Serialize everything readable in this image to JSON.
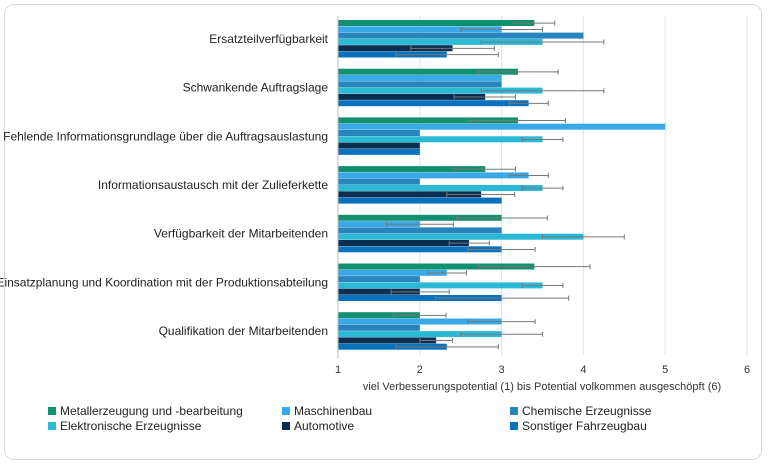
{
  "chart_data": {
    "type": "bar",
    "orientation": "horizontal",
    "categories": [
      "Ersatzteilverfügbarkeit",
      "Schwankende Auftragslage",
      "Fehlende Informationsgrundlage über die Auftragsauslastung",
      "Informationsaustausch mit der Zulieferkette",
      "Verfügbarkeit der Mitarbeitenden",
      "Einsatzplanung und Koordination mit der Produktionsabteilung",
      "Qualifikation der Mitarbeitenden"
    ],
    "series": [
      {
        "name": "Metallerzeugung und -bearbeitung",
        "color": "#12906f",
        "values": [
          3.4,
          3.2,
          3.2,
          2.8,
          3.0,
          3.4,
          2.0
        ],
        "error": [
          [
            3.15,
            3.65
          ],
          [
            2.71,
            3.69
          ],
          [
            2.61,
            3.78
          ],
          [
            2.42,
            3.17
          ],
          [
            2.45,
            3.56
          ],
          [
            2.72,
            4.08
          ],
          [
            1.68,
            2.32
          ]
        ]
      },
      {
        "name": "Maschinenbau",
        "color": "#38a9e6",
        "values": [
          3.0,
          3.0,
          5.0,
          3.33,
          2.0,
          2.33,
          3.0
        ],
        "error": [
          [
            2.5,
            3.5
          ],
          null,
          null,
          [
            3.1,
            3.57
          ],
          [
            1.59,
            2.41
          ],
          [
            2.1,
            2.57
          ],
          [
            2.59,
            3.41
          ]
        ]
      },
      {
        "name": "Chemische Erzeugnisse",
        "color": "#2784bd",
        "values": [
          4.0,
          3.0,
          2.0,
          2.0,
          3.0,
          2.0,
          2.0
        ],
        "error": [
          null,
          null,
          null,
          null,
          null,
          null,
          null
        ]
      },
      {
        "name": "Elektronische Erzeugnisse",
        "color": "#2bbad6",
        "values": [
          3.5,
          3.5,
          3.5,
          3.5,
          4.0,
          3.5,
          3.0
        ],
        "error": [
          [
            2.75,
            4.25
          ],
          [
            2.75,
            4.25
          ],
          [
            3.25,
            3.75
          ],
          [
            3.25,
            3.75
          ],
          [
            3.5,
            4.5
          ],
          [
            3.25,
            3.75
          ],
          [
            2.5,
            3.5
          ]
        ]
      },
      {
        "name": "Automotive",
        "color": "#0b2d4f",
        "values": [
          2.4,
          2.8,
          2.0,
          2.75,
          2.6,
          2.0,
          2.2
        ],
        "error": [
          [
            1.89,
            2.91
          ],
          [
            2.42,
            3.17
          ],
          null,
          [
            2.33,
            3.16
          ],
          [
            2.36,
            2.85
          ],
          [
            1.65,
            2.36
          ],
          [
            2.0,
            2.4
          ]
        ]
      },
      {
        "name": "Sonstiger Fahrzeugbau",
        "color": "#0a72bd",
        "values": [
          2.33,
          3.33,
          2.0,
          3.0,
          3.0,
          3.0,
          2.33
        ],
        "error": [
          [
            1.71,
            2.96
          ],
          [
            3.1,
            3.57
          ],
          null,
          null,
          [
            2.59,
            3.41
          ],
          [
            2.19,
            3.82
          ],
          [
            1.71,
            2.96
          ]
        ]
      }
    ],
    "xlabel": "viel Verbesserungspotential (1) bis Potential volkommen ausgeschöpft (6)",
    "xlim": [
      1,
      6
    ],
    "xticks": [
      "1",
      "2",
      "3",
      "4",
      "5",
      "6"
    ],
    "grid": "vertical",
    "legend": "bottom"
  }
}
